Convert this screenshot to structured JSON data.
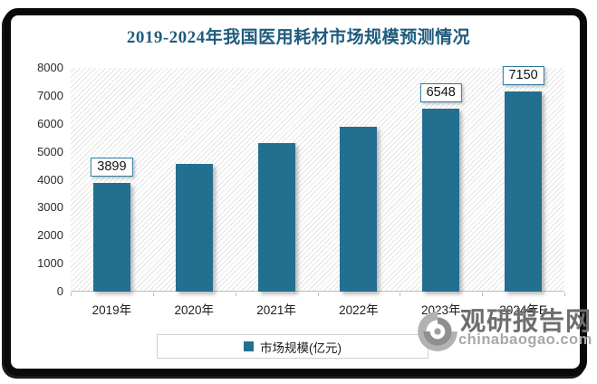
{
  "title": "2019-2024年我国医用耗材市场规模预测情况",
  "chart_data": {
    "type": "bar",
    "title": "2019-2024年我国医用耗材市场规模预测情况",
    "categories": [
      "2019年",
      "2020年",
      "2021年",
      "2022年",
      "2023年",
      "2024年E"
    ],
    "series": [
      {
        "name": "市场规模(亿元)",
        "values": [
          3899,
          4560,
          5320,
          5880,
          6548,
          7150
        ]
      }
    ],
    "visible_value_labels": [
      {
        "category_index": 0,
        "text": "3899"
      },
      {
        "category_index": 4,
        "text": "6548"
      },
      {
        "category_index": 5,
        "text": "7150"
      }
    ],
    "xlabel": "",
    "ylabel": "",
    "ylim": [
      0,
      8000
    ],
    "yticks": [
      0,
      1000,
      2000,
      3000,
      4000,
      5000,
      6000,
      7000,
      8000
    ],
    "grid": false,
    "legend_position": "bottom",
    "bar_color": "#226f8f"
  },
  "legend": {
    "label": "市场规模(亿元)"
  },
  "watermark": {
    "name": "观研报告网",
    "domain": "chinabaogao.com"
  },
  "colors": {
    "title": "#1f5b7d",
    "bar": "#226f8f",
    "frame": "#0a0a0a",
    "watermark_text": "#6e6e6e"
  }
}
